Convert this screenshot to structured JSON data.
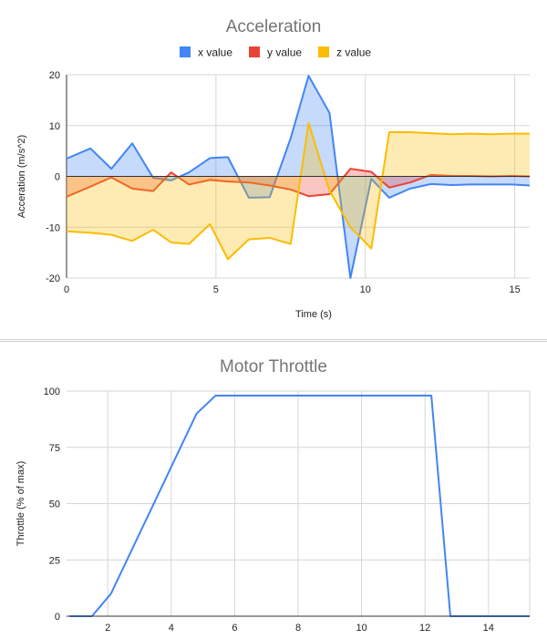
{
  "charts": [
    {
      "id": "acceleration",
      "chart_data": {
        "type": "area",
        "title": "Acceleration",
        "xlabel": "Time (s)",
        "ylabel": "Acceration (m/s^2)",
        "xlim": [
          0,
          15.5
        ],
        "ylim": [
          -20,
          20
        ],
        "xticks": [
          0,
          5,
          10,
          15
        ],
        "yticks": [
          -20,
          -10,
          0,
          10,
          20
        ],
        "grid": true,
        "legend": "top",
        "series": [
          {
            "name": "x value",
            "color": "#4285f4",
            "x": [
              0,
              0.8,
              1.5,
              2.2,
              2.9,
              3.5,
              4.1,
              4.8,
              5.4,
              6.1,
              6.8,
              7.5,
              8.1,
              8.8,
              9.5,
              10.2,
              10.8,
              11.5,
              12.2,
              12.9,
              13.5,
              14.2,
              14.9,
              15.5
            ],
            "values": [
              3.5,
              5.5,
              1.5,
              6.5,
              -0.3,
              -0.8,
              0.8,
              3.6,
              3.8,
              -4.2,
              -4.1,
              7.5,
              19.8,
              12.5,
              -20,
              -0.5,
              -4.2,
              -2.4,
              -1.5,
              -1.7,
              -1.6,
              -1.6,
              -1.6,
              -1.8
            ]
          },
          {
            "name": "y value",
            "color": "#ea4335",
            "x": [
              0,
              0.8,
              1.5,
              2.2,
              2.9,
              3.5,
              4.1,
              4.8,
              5.4,
              6.1,
              6.8,
              7.5,
              8.1,
              8.8,
              9.5,
              10.2,
              10.8,
              11.5,
              12.2,
              12.9,
              13.5,
              14.2,
              14.9,
              15.5
            ],
            "values": [
              -4,
              -2,
              -0.2,
              -2.4,
              -2.9,
              0.8,
              -1.6,
              -0.7,
              -1,
              -1.2,
              -1.8,
              -2.6,
              -3.9,
              -3.5,
              1.5,
              0.9,
              -2.2,
              -1.2,
              0.3,
              0.1,
              0.1,
              0,
              0.1,
              0
            ]
          },
          {
            "name": "z value",
            "color": "#fbbc04",
            "x": [
              0,
              0.8,
              1.5,
              2.2,
              2.9,
              3.5,
              4.1,
              4.8,
              5.4,
              6.1,
              6.8,
              7.5,
              8.1,
              8.8,
              9.5,
              10.2,
              10.8,
              11.5,
              12.2,
              12.9,
              13.5,
              14.2,
              14.9,
              15.5
            ],
            "values": [
              -10.8,
              -11.1,
              -11.5,
              -12.7,
              -10.5,
              -13,
              -13.3,
              -9.4,
              -16.3,
              -12.4,
              -12.1,
              -13.3,
              10.5,
              -2.8,
              -10,
              -14.2,
              8.7,
              8.7,
              8.5,
              8.3,
              8.4,
              8.3,
              8.4,
              8.4
            ]
          }
        ]
      }
    },
    {
      "id": "motor_throttle",
      "chart_data": {
        "type": "line",
        "title": "Motor Throttle",
        "xlabel": "",
        "ylabel": "Throttle (% of max)",
        "xlim": [
          0.7,
          15.3
        ],
        "ylim": [
          0,
          100
        ],
        "xticks": [
          2,
          4,
          6,
          8,
          10,
          12,
          14
        ],
        "yticks": [
          0,
          25,
          50,
          75,
          100
        ],
        "grid": true,
        "series": [
          {
            "name": "",
            "color": "#4285f4",
            "x": [
              0.8,
              1.5,
              2.1,
              4.8,
              5.4,
              12.2,
              12.8,
              15.3
            ],
            "values": [
              0,
              0,
              10,
              90,
              98,
              98,
              0,
              0
            ]
          }
        ]
      }
    }
  ]
}
